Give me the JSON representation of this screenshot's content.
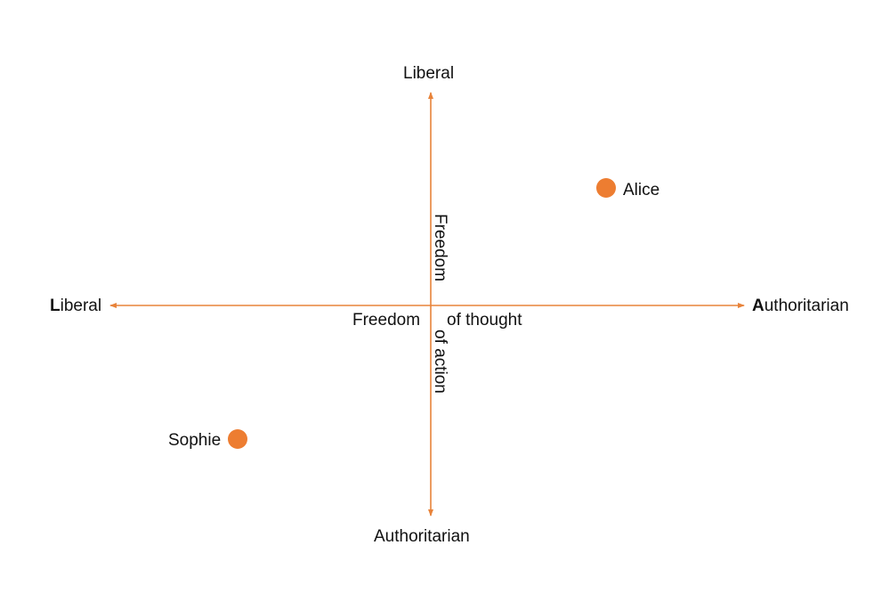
{
  "axes": {
    "top_label": "Liberal",
    "bottom_label": "Authoritarian",
    "left_label": "Liberal",
    "right_label": "Authoritarian",
    "vertical_upper_label": "Freedom",
    "vertical_lower_label": "of action",
    "horizontal_left_label": "Freedom",
    "horizontal_right_label": "of thought",
    "color": "#e8833a"
  },
  "points": [
    {
      "name": "Alice",
      "color": "#ed7d31"
    },
    {
      "name": "Sophie",
      "color": "#ed7d31"
    }
  ]
}
